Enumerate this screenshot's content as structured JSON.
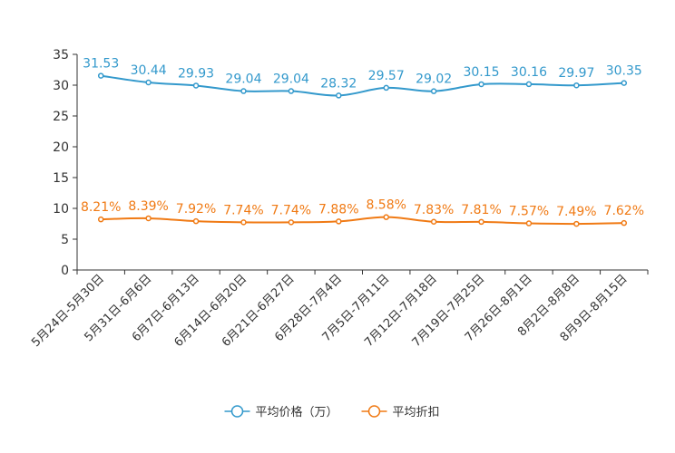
{
  "chart_data": {
    "type": "line",
    "categories": [
      "5月24日-5月30日",
      "5月31日-6月6日",
      "6月7日-6月13日",
      "6月14日-6月20日",
      "6月21日-6月27日",
      "6月28日-7月4日",
      "7月5日-7月11日",
      "7月12日-7月18日",
      "7月19日-7月25日",
      "7月26日-8月1日",
      "8月2日-8月8日",
      "8月9日-8月15日"
    ],
    "series": [
      {
        "name": "平均价格（万）",
        "color": "#3399CC",
        "values": [
          31.53,
          30.44,
          29.93,
          29.04,
          29.04,
          28.32,
          29.57,
          29.02,
          30.15,
          30.16,
          29.97,
          30.35
        ],
        "labels": [
          "31.53",
          "30.44",
          "29.93",
          "29.04",
          "29.04",
          "28.32",
          "29.57",
          "29.02",
          "30.15",
          "30.16",
          "29.97",
          "30.35"
        ]
      },
      {
        "name": "平均折扣",
        "color": "#F07A14",
        "values": [
          8.21,
          8.39,
          7.92,
          7.74,
          7.74,
          7.88,
          8.58,
          7.83,
          7.81,
          7.57,
          7.49,
          7.62
        ],
        "labels": [
          "8.21%",
          "8.39%",
          "7.92%",
          "7.74%",
          "7.74%",
          "7.88%",
          "8.58%",
          "7.83%",
          "7.81%",
          "7.57%",
          "7.49%",
          "7.62%"
        ]
      }
    ],
    "ylim": [
      0,
      35
    ],
    "yticks": [
      0,
      5,
      10,
      15,
      20,
      25,
      30,
      35
    ],
    "xlabel": "",
    "ylabel": "",
    "legend_position": "bottom-center"
  }
}
